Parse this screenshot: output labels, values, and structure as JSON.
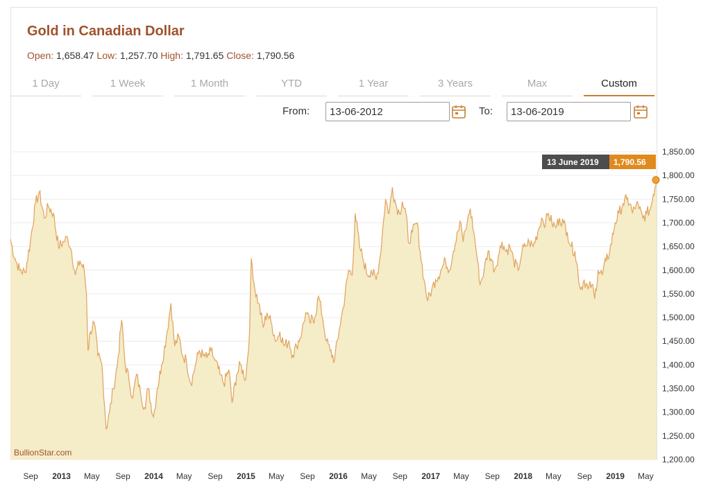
{
  "header": {
    "title": "Gold in Canadian Dollar",
    "open_label": "Open:",
    "open_value": "1,658.47",
    "low_label": "Low:",
    "low_value": "1,257.70",
    "high_label": "High:",
    "high_value": "1,791.65",
    "close_label": "Close:",
    "close_value": "1,790.56"
  },
  "tabs": [
    {
      "label": "1 Day",
      "active": false
    },
    {
      "label": "1 Week",
      "active": false
    },
    {
      "label": "1 Month",
      "active": false
    },
    {
      "label": "YTD",
      "active": false
    },
    {
      "label": "1 Year",
      "active": false
    },
    {
      "label": "3 Years",
      "active": false
    },
    {
      "label": "Max",
      "active": false
    },
    {
      "label": "Custom",
      "active": true
    }
  ],
  "range": {
    "from_label": "From:",
    "from_value": "13-06-2012",
    "to_label": "To:",
    "to_value": "13-06-2019"
  },
  "colors": {
    "accent": "#c87f2f",
    "title": "#a0522d",
    "area_fill": "#f5ecc8",
    "line": "#e0a25a",
    "tooltip_dark": "#4d4d4d",
    "tooltip_accent": "#e08a1e"
  },
  "credit": "BullionStar.com",
  "chart_data": {
    "type": "area",
    "title": "Gold in Canadian Dollar",
    "xlabel": "",
    "ylabel": "",
    "x_range": [
      "2012-06-13",
      "2019-06-13"
    ],
    "ylim": [
      1200,
      1850
    ],
    "y_ticks": [
      "1,200.00",
      "1,250.00",
      "1,300.00",
      "1,350.00",
      "1,400.00",
      "1,450.00",
      "1,500.00",
      "1,550.00",
      "1,600.00",
      "1,650.00",
      "1,700.00",
      "1,750.00",
      "1,800.00",
      "1,850.00"
    ],
    "x_ticks": [
      {
        "label": "Sep",
        "date": "2012-09-01",
        "year": false
      },
      {
        "label": "2013",
        "date": "2013-01-01",
        "year": true
      },
      {
        "label": "May",
        "date": "2013-05-01",
        "year": false
      },
      {
        "label": "Sep",
        "date": "2013-09-01",
        "year": false
      },
      {
        "label": "2014",
        "date": "2014-01-01",
        "year": true
      },
      {
        "label": "May",
        "date": "2014-05-01",
        "year": false
      },
      {
        "label": "Sep",
        "date": "2014-09-01",
        "year": false
      },
      {
        "label": "2015",
        "date": "2015-01-01",
        "year": true
      },
      {
        "label": "May",
        "date": "2015-05-01",
        "year": false
      },
      {
        "label": "Sep",
        "date": "2015-09-01",
        "year": false
      },
      {
        "label": "2016",
        "date": "2016-01-01",
        "year": true
      },
      {
        "label": "May",
        "date": "2016-05-01",
        "year": false
      },
      {
        "label": "Sep",
        "date": "2016-09-01",
        "year": false
      },
      {
        "label": "2017",
        "date": "2017-01-01",
        "year": true
      },
      {
        "label": "May",
        "date": "2017-05-01",
        "year": false
      },
      {
        "label": "Sep",
        "date": "2017-09-01",
        "year": false
      },
      {
        "label": "2018",
        "date": "2018-01-01",
        "year": true
      },
      {
        "label": "May",
        "date": "2018-05-01",
        "year": false
      },
      {
        "label": "Sep",
        "date": "2018-09-01",
        "year": false
      },
      {
        "label": "2019",
        "date": "2019-01-01",
        "year": true
      },
      {
        "label": "May",
        "date": "2019-05-01",
        "year": false
      }
    ],
    "grid": true,
    "series": [
      {
        "points": [
          [
            "2012-06-13",
            1665
          ],
          [
            "2012-07-01",
            1625
          ],
          [
            "2012-07-20",
            1600
          ],
          [
            "2012-08-10",
            1595
          ],
          [
            "2012-08-31",
            1660
          ],
          [
            "2012-09-20",
            1740
          ],
          [
            "2012-10-05",
            1765
          ],
          [
            "2012-10-25",
            1710
          ],
          [
            "2012-11-10",
            1735
          ],
          [
            "2012-11-30",
            1720
          ],
          [
            "2012-12-20",
            1650
          ],
          [
            "2013-01-10",
            1660
          ],
          [
            "2013-01-25",
            1670
          ],
          [
            "2013-02-10",
            1640
          ],
          [
            "2013-02-25",
            1590
          ],
          [
            "2013-03-15",
            1620
          ],
          [
            "2013-04-01",
            1600
          ],
          [
            "2013-04-10",
            1550
          ],
          [
            "2013-04-16",
            1430
          ],
          [
            "2013-04-25",
            1470
          ],
          [
            "2013-05-10",
            1490
          ],
          [
            "2013-05-25",
            1420
          ],
          [
            "2013-06-10",
            1400
          ],
          [
            "2013-06-27",
            1265
          ],
          [
            "2013-07-10",
            1300
          ],
          [
            "2013-07-25",
            1350
          ],
          [
            "2013-08-10",
            1400
          ],
          [
            "2013-08-27",
            1495
          ],
          [
            "2013-09-10",
            1400
          ],
          [
            "2013-09-25",
            1370
          ],
          [
            "2013-10-10",
            1330
          ],
          [
            "2013-10-25",
            1380
          ],
          [
            "2013-11-10",
            1340
          ],
          [
            "2013-11-25",
            1310
          ],
          [
            "2013-12-10",
            1350
          ],
          [
            "2013-12-31",
            1290
          ],
          [
            "2014-01-15",
            1350
          ],
          [
            "2014-02-01",
            1400
          ],
          [
            "2014-02-20",
            1460
          ],
          [
            "2014-03-10",
            1530
          ],
          [
            "2014-03-25",
            1440
          ],
          [
            "2014-04-10",
            1460
          ],
          [
            "2014-04-25",
            1420
          ],
          [
            "2014-05-10",
            1410
          ],
          [
            "2014-05-28",
            1360
          ],
          [
            "2014-06-15",
            1400
          ],
          [
            "2014-06-30",
            1430
          ],
          [
            "2014-07-15",
            1420
          ],
          [
            "2014-07-31",
            1415
          ],
          [
            "2014-08-15",
            1430
          ],
          [
            "2014-08-31",
            1410
          ],
          [
            "2014-09-20",
            1380
          ],
          [
            "2014-10-05",
            1360
          ],
          [
            "2014-10-25",
            1390
          ],
          [
            "2014-11-07",
            1320
          ],
          [
            "2014-11-25",
            1380
          ],
          [
            "2014-12-10",
            1400
          ],
          [
            "2014-12-31",
            1370
          ],
          [
            "2015-01-15",
            1470
          ],
          [
            "2015-01-22",
            1625
          ],
          [
            "2015-02-05",
            1560
          ],
          [
            "2015-02-20",
            1530
          ],
          [
            "2015-03-10",
            1480
          ],
          [
            "2015-03-25",
            1510
          ],
          [
            "2015-04-10",
            1490
          ],
          [
            "2015-04-30",
            1450
          ],
          [
            "2015-05-15",
            1470
          ],
          [
            "2015-06-01",
            1440
          ],
          [
            "2015-06-20",
            1450
          ],
          [
            "2015-07-05",
            1420
          ],
          [
            "2015-07-20",
            1440
          ],
          [
            "2015-08-10",
            1470
          ],
          [
            "2015-08-25",
            1510
          ],
          [
            "2015-09-10",
            1490
          ],
          [
            "2015-09-30",
            1500
          ],
          [
            "2015-10-15",
            1545
          ],
          [
            "2015-10-31",
            1500
          ],
          [
            "2015-11-15",
            1450
          ],
          [
            "2015-11-30",
            1430
          ],
          [
            "2015-12-17",
            1410
          ],
          [
            "2016-01-05",
            1475
          ],
          [
            "2016-01-20",
            1520
          ],
          [
            "2016-02-11",
            1600
          ],
          [
            "2016-02-25",
            1590
          ],
          [
            "2016-03-08",
            1720
          ],
          [
            "2016-03-25",
            1650
          ],
          [
            "2016-04-10",
            1620
          ],
          [
            "2016-04-25",
            1590
          ],
          [
            "2016-05-10",
            1600
          ],
          [
            "2016-05-30",
            1580
          ],
          [
            "2016-06-15",
            1630
          ],
          [
            "2016-06-27",
            1700
          ],
          [
            "2016-07-06",
            1750
          ],
          [
            "2016-07-20",
            1720
          ],
          [
            "2016-08-02",
            1775
          ],
          [
            "2016-08-15",
            1740
          ],
          [
            "2016-08-30",
            1720
          ],
          [
            "2016-09-10",
            1745
          ],
          [
            "2016-09-25",
            1720
          ],
          [
            "2016-10-04",
            1660
          ],
          [
            "2016-10-20",
            1680
          ],
          [
            "2016-11-08",
            1700
          ],
          [
            "2016-11-20",
            1640
          ],
          [
            "2016-12-05",
            1580
          ],
          [
            "2016-12-20",
            1535
          ],
          [
            "2017-01-05",
            1560
          ],
          [
            "2017-01-20",
            1580
          ],
          [
            "2017-02-10",
            1600
          ],
          [
            "2017-02-28",
            1620
          ],
          [
            "2017-03-15",
            1600
          ],
          [
            "2017-03-31",
            1640
          ],
          [
            "2017-04-15",
            1680
          ],
          [
            "2017-04-30",
            1700
          ],
          [
            "2017-05-09",
            1660
          ],
          [
            "2017-05-25",
            1700
          ],
          [
            "2017-06-06",
            1730
          ],
          [
            "2017-06-20",
            1680
          ],
          [
            "2017-07-05",
            1620
          ],
          [
            "2017-07-15",
            1570
          ],
          [
            "2017-07-31",
            1600
          ],
          [
            "2017-08-15",
            1640
          ],
          [
            "2017-08-31",
            1620
          ],
          [
            "2017-09-10",
            1600
          ],
          [
            "2017-09-25",
            1630
          ],
          [
            "2017-10-10",
            1660
          ],
          [
            "2017-10-25",
            1640
          ],
          [
            "2017-11-10",
            1650
          ],
          [
            "2017-11-25",
            1620
          ],
          [
            "2017-12-12",
            1600
          ],
          [
            "2017-12-28",
            1640
          ],
          [
            "2018-01-10",
            1650
          ],
          [
            "2018-01-25",
            1660
          ],
          [
            "2018-02-10",
            1650
          ],
          [
            "2018-02-28",
            1680
          ],
          [
            "2018-03-15",
            1710
          ],
          [
            "2018-03-31",
            1700
          ],
          [
            "2018-04-11",
            1720
          ],
          [
            "2018-04-25",
            1700
          ],
          [
            "2018-05-10",
            1690
          ],
          [
            "2018-05-25",
            1710
          ],
          [
            "2018-06-10",
            1700
          ],
          [
            "2018-06-25",
            1680
          ],
          [
            "2018-07-10",
            1650
          ],
          [
            "2018-07-25",
            1640
          ],
          [
            "2018-08-16",
            1560
          ],
          [
            "2018-08-31",
            1580
          ],
          [
            "2018-09-15",
            1560
          ],
          [
            "2018-09-30",
            1570
          ],
          [
            "2018-10-11",
            1540
          ],
          [
            "2018-10-25",
            1600
          ],
          [
            "2018-11-10",
            1590
          ],
          [
            "2018-11-25",
            1620
          ],
          [
            "2018-12-10",
            1640
          ],
          [
            "2018-12-31",
            1700
          ],
          [
            "2019-01-15",
            1720
          ],
          [
            "2019-01-31",
            1740
          ],
          [
            "2019-02-15",
            1750
          ],
          [
            "2019-02-28",
            1740
          ],
          [
            "2019-03-10",
            1720
          ],
          [
            "2019-03-25",
            1740
          ],
          [
            "2019-04-05",
            1730
          ],
          [
            "2019-04-20",
            1710
          ],
          [
            "2019-05-05",
            1720
          ],
          [
            "2019-05-20",
            1730
          ],
          [
            "2019-05-31",
            1760
          ],
          [
            "2019-06-07",
            1775
          ],
          [
            "2019-06-13",
            1790.56
          ]
        ]
      }
    ],
    "tooltip": {
      "date": "13 June 2019",
      "value": "1,790.56"
    }
  }
}
